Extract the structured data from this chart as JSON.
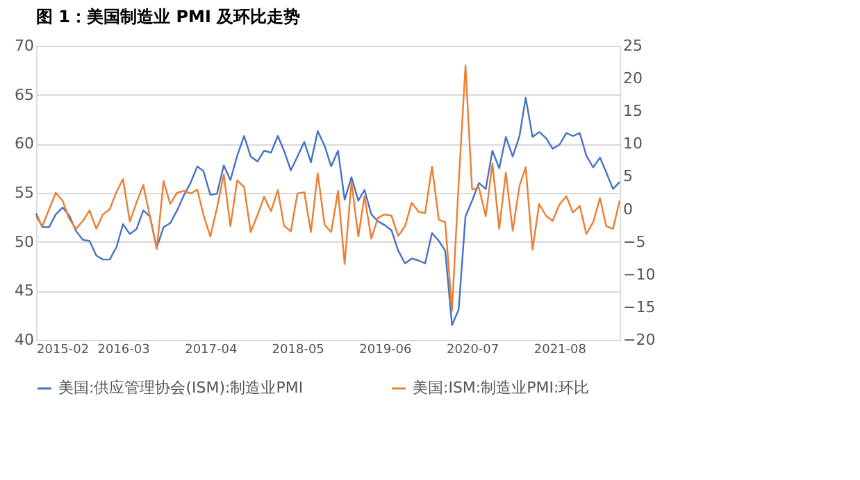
{
  "chart_data": {
    "type": "line",
    "title": "图 1：美国制造业 PMI 及环比走势",
    "x": [
      "2015-02",
      "2015-03",
      "2015-04",
      "2015-05",
      "2015-06",
      "2015-07",
      "2015-08",
      "2015-09",
      "2015-10",
      "2015-11",
      "2015-12",
      "2016-01",
      "2016-02",
      "2016-03",
      "2016-04",
      "2016-05",
      "2016-06",
      "2016-07",
      "2016-08",
      "2016-09",
      "2016-10",
      "2016-11",
      "2016-12",
      "2017-01",
      "2017-02",
      "2017-03",
      "2017-04",
      "2017-05",
      "2017-06",
      "2017-07",
      "2017-08",
      "2017-09",
      "2017-10",
      "2017-11",
      "2017-12",
      "2018-01",
      "2018-02",
      "2018-03",
      "2018-04",
      "2018-05",
      "2018-06",
      "2018-07",
      "2018-08",
      "2018-09",
      "2018-10",
      "2018-11",
      "2018-12",
      "2019-01",
      "2019-02",
      "2019-03",
      "2019-04",
      "2019-05",
      "2019-06",
      "2019-07",
      "2019-08",
      "2019-09",
      "2019-10",
      "2019-11",
      "2019-12",
      "2020-01",
      "2020-02",
      "2020-03",
      "2020-04",
      "2020-05",
      "2020-06",
      "2020-07",
      "2020-08",
      "2020-09",
      "2020-10",
      "2020-11",
      "2020-12",
      "2021-01",
      "2021-02",
      "2021-03",
      "2021-04",
      "2021-05",
      "2021-06",
      "2021-07",
      "2021-08",
      "2021-09",
      "2021-10",
      "2021-11",
      "2021-12",
      "2022-01",
      "2022-02",
      "2022-03",
      "2022-04",
      "2022-05"
    ],
    "series": [
      {
        "name": "美国:供应管理协会(ISM):制造业PMI",
        "color": "#4472c4",
        "values": [
          52.9,
          51.5,
          51.5,
          52.8,
          53.5,
          52.7,
          51.1,
          50.2,
          50.1,
          48.6,
          48.2,
          48.2,
          49.5,
          51.8,
          50.8,
          51.3,
          53.2,
          52.6,
          49.4,
          51.5,
          51.9,
          53.2,
          54.7,
          56.0,
          57.7,
          57.2,
          54.8,
          54.9,
          57.8,
          56.3,
          58.8,
          60.8,
          58.7,
          58.2,
          59.3,
          59.1,
          60.8,
          59.3,
          57.3,
          58.7,
          60.2,
          58.1,
          61.3,
          59.8,
          57.7,
          59.3,
          54.3,
          56.6,
          54.2,
          55.3,
          52.8,
          52.1,
          51.7,
          51.2,
          49.1,
          47.8,
          48.3,
          48.1,
          47.8,
          50.9,
          50.1,
          49.1,
          41.5,
          43.1,
          52.6,
          54.2,
          56.0,
          55.4,
          59.3,
          57.5,
          60.7,
          58.7,
          60.8,
          64.7,
          60.7,
          61.2,
          60.6,
          59.5,
          59.9,
          61.1,
          60.8,
          61.1,
          58.8,
          57.6,
          58.6,
          57.1,
          55.4,
          56.1
        ]
      },
      {
        "name": "美国:ISM:制造业PMI:环比",
        "color": "#ed7d31",
        "axis": "y2",
        "values": [
          -1.1,
          -2.6,
          0.0,
          2.5,
          1.3,
          -1.5,
          -3.0,
          -1.8,
          -0.2,
          -3.0,
          -0.8,
          0.0,
          2.7,
          4.6,
          -1.9,
          1.0,
          3.7,
          -1.1,
          -6.1,
          4.3,
          0.8,
          2.5,
          2.8,
          2.4,
          3.0,
          -0.9,
          -4.2,
          0.2,
          5.3,
          -2.6,
          4.4,
          3.4,
          -3.5,
          -0.9,
          1.9,
          -0.3,
          2.9,
          -2.5,
          -3.4,
          2.4,
          2.6,
          -3.5,
          5.5,
          -2.4,
          -3.5,
          2.8,
          -8.4,
          4.2,
          -4.2,
          2.0,
          -4.5,
          -1.3,
          -0.8,
          -1.0,
          -4.1,
          -2.6,
          1.0,
          -0.4,
          -0.6,
          6.5,
          -1.6,
          -2.0,
          -15.5,
          3.9,
          22.0,
          3.0,
          3.3,
          -1.1,
          7.0,
          -3.0,
          5.6,
          -3.3,
          3.6,
          6.4,
          -6.2,
          0.8,
          -1.0,
          -1.8,
          0.7,
          2.0,
          -0.5,
          0.5,
          -3.8,
          -2.0,
          1.7,
          -2.6,
          -3.0,
          1.3
        ]
      }
    ],
    "xlim": [
      "2015-02",
      "2022-05"
    ],
    "xticks": [
      "2015-02",
      "2016-03",
      "2017-04",
      "2018-05",
      "2019-06",
      "2020-07",
      "2021-08"
    ],
    "ylim": [
      40,
      70
    ],
    "yticks": [
      40,
      45,
      50,
      55,
      60,
      65,
      70
    ],
    "y2lim": [
      -20,
      25
    ],
    "y2ticks": [
      -20,
      -15,
      -10,
      -5,
      0,
      5,
      10,
      15,
      20,
      25
    ],
    "grid": "y",
    "legend": "bottom",
    "marker": "none",
    "line_style": "solid"
  }
}
